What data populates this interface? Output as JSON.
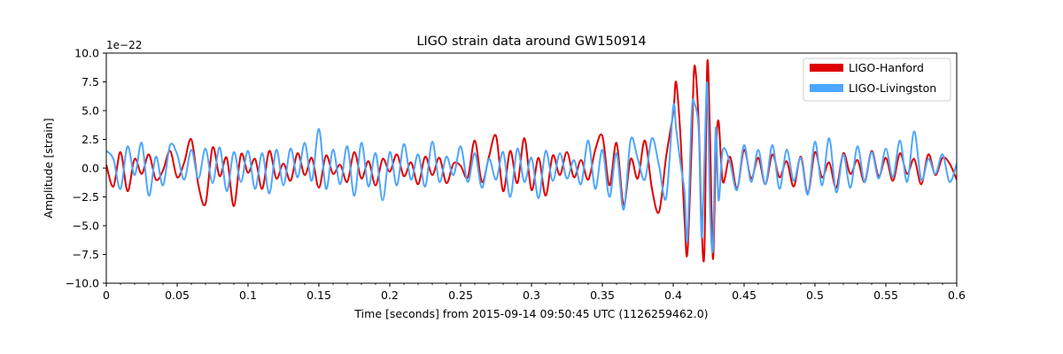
{
  "chart_data": {
    "type": "line",
    "title": "LIGO strain data around GW150914",
    "xlabel": "Time [seconds] from 2015-09-14 09:50:45 UTC (1126259462.0)",
    "ylabel": "Amplitude [strain]",
    "y_offset_label": "1e−22",
    "xlim": [
      0,
      0.6
    ],
    "ylim": [
      -10.0,
      10.0
    ],
    "x_ticks": [
      0,
      0.05,
      0.1,
      0.15,
      0.2,
      0.25,
      0.3,
      0.35,
      0.4,
      0.45,
      0.5,
      0.55,
      0.6
    ],
    "x_tick_labels": [
      "0",
      "0.05",
      "0.1",
      "0.15",
      "0.2",
      "0.25",
      "0.3",
      "0.35",
      "0.4",
      "0.45",
      "0.5",
      "0.55",
      "0.6"
    ],
    "y_ticks": [
      -10.0,
      -7.5,
      -5.0,
      -2.5,
      0.0,
      2.5,
      5.0,
      7.5,
      10.0
    ],
    "y_tick_labels": [
      "−10.0",
      "−7.5",
      "−5.0",
      "−2.5",
      "0.0",
      "2.5",
      "5.0",
      "7.5",
      "10.0"
    ],
    "grid": false,
    "legend_position": "top-right",
    "series": [
      {
        "name": "LIGO-Hanford",
        "color": "#e00000",
        "x": [
          0.0,
          0.005,
          0.01,
          0.015,
          0.02,
          0.025,
          0.03,
          0.035,
          0.04,
          0.045,
          0.05,
          0.055,
          0.06,
          0.065,
          0.07,
          0.075,
          0.08,
          0.085,
          0.09,
          0.095,
          0.1,
          0.105,
          0.11,
          0.115,
          0.12,
          0.125,
          0.13,
          0.135,
          0.14,
          0.145,
          0.15,
          0.155,
          0.16,
          0.165,
          0.17,
          0.175,
          0.18,
          0.185,
          0.19,
          0.195,
          0.2,
          0.205,
          0.21,
          0.215,
          0.22,
          0.225,
          0.23,
          0.235,
          0.24,
          0.245,
          0.25,
          0.255,
          0.26,
          0.265,
          0.27,
          0.275,
          0.28,
          0.285,
          0.29,
          0.295,
          0.3,
          0.305,
          0.31,
          0.315,
          0.32,
          0.325,
          0.33,
          0.335,
          0.34,
          0.345,
          0.35,
          0.355,
          0.36,
          0.365,
          0.37,
          0.375,
          0.38,
          0.385,
          0.39,
          0.395,
          0.4,
          0.402,
          0.405,
          0.408,
          0.41,
          0.413,
          0.415,
          0.418,
          0.42,
          0.422,
          0.424,
          0.426,
          0.428,
          0.43,
          0.432,
          0.435,
          0.44,
          0.445,
          0.45,
          0.455,
          0.46,
          0.465,
          0.47,
          0.475,
          0.48,
          0.485,
          0.49,
          0.495,
          0.5,
          0.505,
          0.51,
          0.515,
          0.52,
          0.525,
          0.53,
          0.535,
          0.54,
          0.545,
          0.55,
          0.555,
          0.56,
          0.565,
          0.57,
          0.575,
          0.58,
          0.585,
          0.59,
          0.595,
          0.6
        ],
        "y": [
          0.3,
          -1.6,
          1.4,
          -2.0,
          0.8,
          -0.5,
          1.2,
          -1.0,
          -0.2,
          1.5,
          -0.8,
          0.5,
          2.5,
          -1.5,
          -3.1,
          1.8,
          -0.7,
          0.9,
          -3.3,
          1.2,
          -0.4,
          0.8,
          -1.8,
          1.5,
          -0.9,
          0.4,
          -1.1,
          1.3,
          -0.6,
          0.9,
          -1.7,
          1.1,
          -0.5,
          0.3,
          -1.2,
          1.4,
          -0.9,
          0.6,
          -1.5,
          0.8,
          -0.3,
          1.2,
          -0.7,
          0.5,
          -1.4,
          1.0,
          -0.6,
          0.9,
          -1.3,
          0.4,
          0.2,
          -0.8,
          2.4,
          -1.2,
          1.0,
          2.8,
          -2.0,
          1.5,
          -1.3,
          2.6,
          -1.9,
          0.9,
          -2.4,
          1.1,
          -0.6,
          1.4,
          -0.8,
          0.7,
          -1.0,
          1.6,
          2.8,
          -1.5,
          2.2,
          -3.2,
          0.8,
          -0.9,
          2.4,
          -1.8,
          -3.8,
          1.0,
          4.8,
          7.5,
          3.0,
          -4.5,
          -7.4,
          2.0,
          8.9,
          3.8,
          -5.0,
          -7.2,
          9.1,
          2.5,
          -7.9,
          0.9,
          4.1,
          -1.2,
          1.0,
          -1.8,
          1.6,
          -0.9,
          0.9,
          -1.4,
          1.2,
          -0.8,
          0.6,
          -1.6,
          1.0,
          -2.2,
          1.4,
          -0.8,
          0.5,
          -1.7,
          1.3,
          -0.5,
          0.7,
          -1.2,
          1.5,
          -0.7,
          0.9,
          -1.1,
          1.3,
          -0.5,
          0.8,
          -1.4,
          1.2,
          -0.6,
          0.9,
          0.4,
          -1.0
        ]
      },
      {
        "name": "LIGO-Livingston",
        "color": "#4da6ff",
        "x": [
          0.0,
          0.005,
          0.01,
          0.015,
          0.02,
          0.025,
          0.03,
          0.035,
          0.04,
          0.045,
          0.05,
          0.055,
          0.06,
          0.065,
          0.07,
          0.075,
          0.08,
          0.085,
          0.09,
          0.095,
          0.1,
          0.105,
          0.11,
          0.115,
          0.12,
          0.125,
          0.13,
          0.135,
          0.14,
          0.145,
          0.15,
          0.155,
          0.16,
          0.165,
          0.17,
          0.175,
          0.18,
          0.185,
          0.19,
          0.195,
          0.2,
          0.205,
          0.21,
          0.215,
          0.22,
          0.225,
          0.23,
          0.235,
          0.24,
          0.245,
          0.25,
          0.255,
          0.26,
          0.265,
          0.27,
          0.275,
          0.28,
          0.285,
          0.29,
          0.295,
          0.3,
          0.305,
          0.31,
          0.315,
          0.32,
          0.325,
          0.33,
          0.335,
          0.34,
          0.345,
          0.35,
          0.355,
          0.36,
          0.365,
          0.37,
          0.375,
          0.38,
          0.385,
          0.39,
          0.395,
          0.4,
          0.402,
          0.405,
          0.408,
          0.41,
          0.413,
          0.415,
          0.418,
          0.42,
          0.422,
          0.424,
          0.426,
          0.428,
          0.43,
          0.432,
          0.435,
          0.44,
          0.445,
          0.45,
          0.455,
          0.46,
          0.465,
          0.47,
          0.475,
          0.48,
          0.485,
          0.49,
          0.495,
          0.5,
          0.505,
          0.51,
          0.515,
          0.52,
          0.525,
          0.53,
          0.535,
          0.54,
          0.545,
          0.55,
          0.555,
          0.56,
          0.565,
          0.57,
          0.575,
          0.58,
          0.585,
          0.59,
          0.595,
          0.6
        ],
        "y": [
          1.5,
          0.8,
          -1.8,
          1.9,
          -0.6,
          2.2,
          -2.4,
          1.0,
          -1.5,
          2.0,
          1.2,
          -1.0,
          1.6,
          -0.9,
          1.7,
          -1.3,
          1.8,
          -2.0,
          1.4,
          -1.2,
          1.5,
          -1.8,
          1.3,
          -2.2,
          1.6,
          -1.5,
          1.7,
          -0.8,
          2.2,
          -1.1,
          3.4,
          -1.8,
          1.6,
          -1.4,
          1.9,
          -2.4,
          2.2,
          -1.6,
          1.3,
          -2.8,
          1.4,
          -1.5,
          2.1,
          -1.0,
          1.2,
          -1.6,
          2.3,
          -1.2,
          1.0,
          -0.6,
          1.9,
          -1.2,
          1.3,
          -1.7,
          0.8,
          -1.0,
          1.4,
          -2.5,
          1.7,
          -1.2,
          0.9,
          -2.6,
          1.5,
          -1.1,
          1.3,
          -0.9,
          0.7,
          -1.4,
          2.4,
          -1.8,
          1.6,
          -2.5,
          1.3,
          -3.6,
          2.5,
          0.8,
          -1.0,
          2.6,
          0.2,
          -2.6,
          5.3,
          3.5,
          0.5,
          -2.1,
          -6.2,
          4.7,
          5.6,
          3.2,
          -6.0,
          0.5,
          7.4,
          -3.5,
          -7.0,
          3.5,
          -2.8,
          1.6,
          0.5,
          -1.9,
          2.0,
          -1.2,
          1.6,
          -1.4,
          2.0,
          -1.8,
          1.6,
          -1.1,
          0.9,
          -2.3,
          2.3,
          -1.5,
          2.6,
          -2.1,
          1.2,
          -1.7,
          1.9,
          -1.2,
          1.4,
          -0.9,
          1.7,
          -0.8,
          2.4,
          -1.2,
          3.2,
          -1.0,
          0.8,
          -0.5,
          1.2,
          -1.2,
          0.4
        ]
      }
    ]
  }
}
